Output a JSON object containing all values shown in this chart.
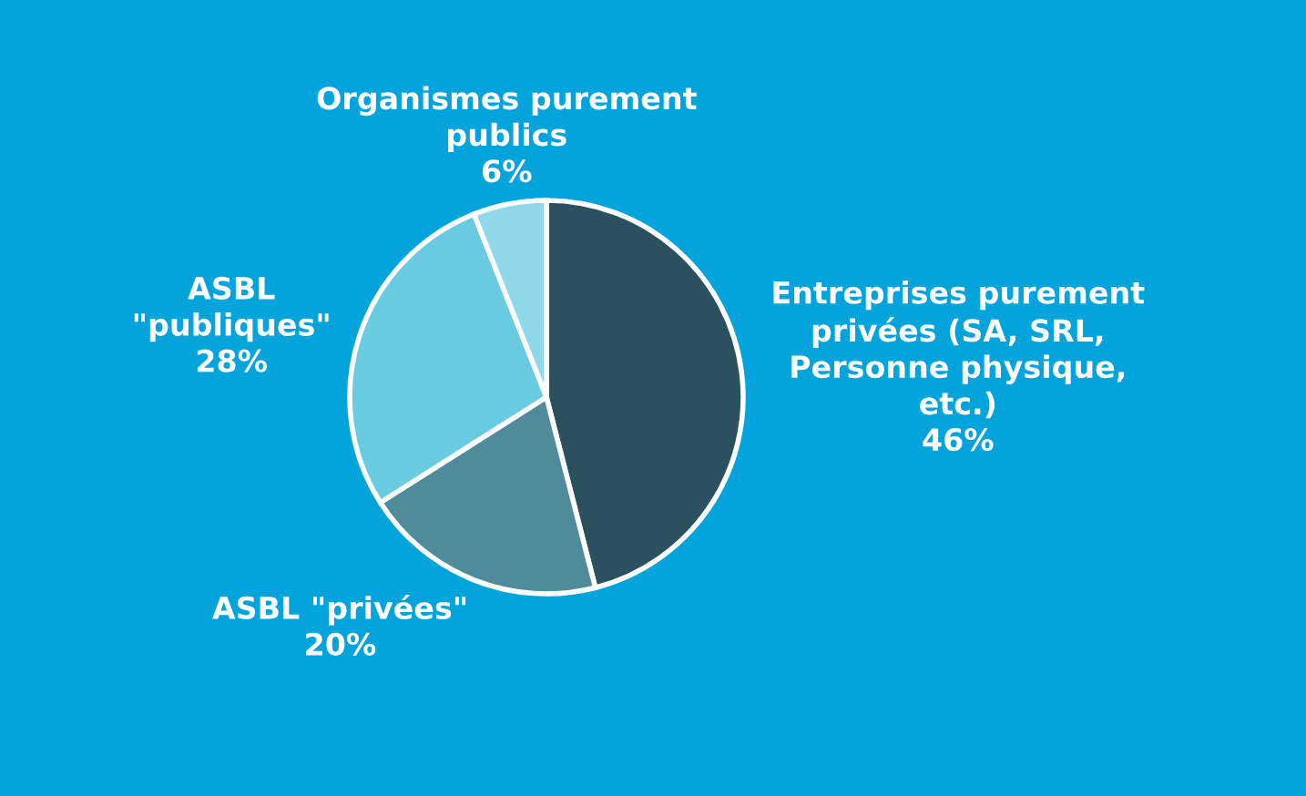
{
  "chart_data": {
    "type": "pie",
    "categories": [
      "Entreprises purement\nprivées (SA, SRL,\nPersonne physique,\netc.)",
      "ASBL \"privées\"",
      "ASBL\n\"publiques\"",
      "Organismes purement\npublics"
    ],
    "values": [
      46,
      20,
      28,
      6
    ],
    "value_labels": [
      "46%",
      "20%",
      "28%",
      "6%"
    ],
    "colors": [
      "#2b505e",
      "#4f8b9b",
      "#68cbdf",
      "#8ed8ea"
    ],
    "legend": false
  }
}
